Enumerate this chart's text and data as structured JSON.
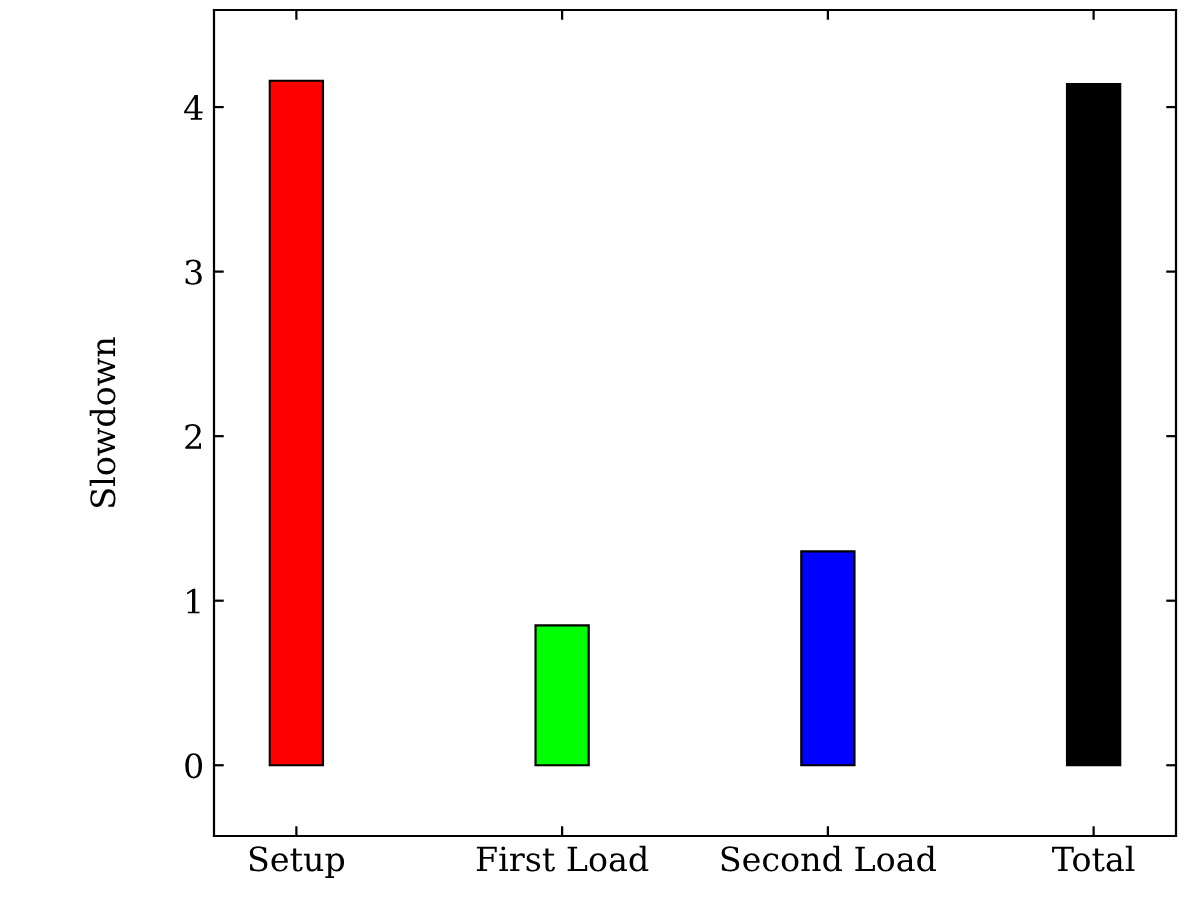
{
  "chart_data": {
    "type": "bar",
    "ylabel": "Slowdown",
    "categories": [
      "Setup",
      "First Load",
      "Second Load",
      "Total"
    ],
    "values": [
      4.16,
      0.85,
      1.3,
      4.14
    ],
    "colors": [
      "#ff0000",
      "#00ff00",
      "#0000ff",
      "#000000"
    ],
    "ylim": [
      -0.43,
      4.59
    ],
    "yticks": [
      0,
      1,
      2,
      3,
      4
    ],
    "grid": false,
    "legend": false
  }
}
